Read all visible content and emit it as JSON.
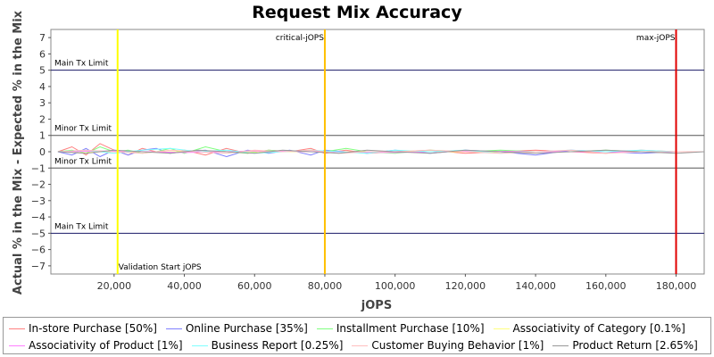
{
  "chart_data": {
    "type": "line",
    "title": "Request Mix Accuracy",
    "xlabel": "jOPS",
    "ylabel": "Actual % in the Mix - Expected % in the Mix",
    "xlim": [
      2000,
      188000
    ],
    "ylim": [
      -7.5,
      7.5
    ],
    "x_ticks": [
      20000,
      40000,
      60000,
      80000,
      100000,
      120000,
      140000,
      160000,
      180000
    ],
    "x_tick_labels": [
      "20,000",
      "40,000",
      "60,000",
      "80,000",
      "100,000",
      "120,000",
      "140,000",
      "160,000",
      "180,000"
    ],
    "y_ticks": [
      7,
      6,
      5,
      4,
      3,
      2,
      1,
      0,
      -1,
      -2,
      -3,
      -4,
      -5,
      -6,
      -7
    ],
    "y_tick_labels": [
      "7",
      "6",
      "5",
      "4",
      "3",
      "2",
      "1",
      "0",
      "−1",
      "−2",
      "−3",
      "−4",
      "−5",
      "−6",
      "−7"
    ],
    "grid": false,
    "legend_position": "bottom",
    "horizontal_lines": [
      {
        "y": 5,
        "label": "Main Tx Limit",
        "color": "#1a1a66"
      },
      {
        "y": 1,
        "label": "Minor Tx Limit",
        "color": "#555555"
      },
      {
        "y": -1,
        "label": "Minor Tx Limit",
        "color": "#555555"
      },
      {
        "y": -5,
        "label": "Main Tx Limit",
        "color": "#1a1a66"
      }
    ],
    "vertical_lines": [
      {
        "x": 21000,
        "label": "Validation Start jOPS",
        "color": "#ffff00"
      },
      {
        "x": 80000,
        "label": "critical-jOPS",
        "color": "#ffc000"
      },
      {
        "x": 180000,
        "label": "max-jOPS",
        "color": "#e00000"
      }
    ],
    "series": [
      {
        "name": "In-store Purchase [50%]",
        "color": "#ff7f7f",
        "x": [
          4000,
          8000,
          12000,
          16000,
          20000,
          24000,
          28000,
          32000,
          36000,
          40000,
          46000,
          52000,
          58000,
          64000,
          70000,
          76000,
          80000,
          86000,
          92000,
          100000,
          110000,
          120000,
          130000,
          140000,
          150000,
          160000,
          170000,
          180000,
          188000
        ],
        "y": [
          0.0,
          0.3,
          -0.2,
          0.5,
          0.1,
          -0.2,
          0.2,
          0.0,
          -0.1,
          0.1,
          -0.2,
          0.2,
          -0.1,
          0.1,
          0.0,
          0.2,
          -0.1,
          0.1,
          -0.1,
          0.0,
          0.1,
          -0.1,
          0.0,
          0.1,
          0.0,
          -0.1,
          0.1,
          0.0,
          0.0
        ]
      },
      {
        "name": "Online Purchase [35%]",
        "color": "#7f7fff",
        "x": [
          4000,
          8000,
          12000,
          16000,
          20000,
          24000,
          28000,
          32000,
          36000,
          40000,
          46000,
          52000,
          58000,
          64000,
          70000,
          76000,
          80000,
          86000,
          92000,
          100000,
          110000,
          120000,
          130000,
          140000,
          150000,
          160000,
          170000,
          180000,
          188000
        ],
        "y": [
          0.0,
          -0.2,
          0.2,
          -0.3,
          0.1,
          -0.2,
          0.1,
          0.2,
          -0.1,
          0.0,
          0.1,
          -0.3,
          0.1,
          -0.1,
          0.1,
          -0.2,
          0.1,
          0.0,
          -0.1,
          0.1,
          -0.1,
          0.1,
          0.0,
          -0.2,
          0.1,
          0.0,
          -0.1,
          0.0,
          0.0
        ]
      },
      {
        "name": "Installment Purchase [10%]",
        "color": "#7fff7f",
        "x": [
          4000,
          8000,
          12000,
          16000,
          20000,
          24000,
          28000,
          32000,
          36000,
          40000,
          46000,
          52000,
          58000,
          64000,
          70000,
          76000,
          80000,
          86000,
          92000,
          100000,
          110000,
          120000,
          130000,
          140000,
          150000,
          160000,
          170000,
          180000,
          188000
        ],
        "y": [
          0.0,
          0.1,
          -0.1,
          0.3,
          0.0,
          0.1,
          -0.1,
          0.0,
          0.2,
          -0.1,
          0.3,
          0.0,
          -0.1,
          0.1,
          0.0,
          0.1,
          0.0,
          0.2,
          0.0,
          -0.1,
          0.1,
          0.0,
          0.1,
          0.0,
          0.0,
          0.1,
          0.0,
          0.0,
          0.0
        ]
      },
      {
        "name": "Associativity of Category [0.1%]",
        "color": "#ffff7f",
        "x": [
          4000,
          40000,
          80000,
          120000,
          160000,
          188000
        ],
        "y": [
          0.0,
          0.0,
          0.0,
          0.0,
          0.0,
          0.0
        ]
      },
      {
        "name": "Associativity of Product [1%]",
        "color": "#ff7fff",
        "x": [
          4000,
          20000,
          40000,
          60000,
          80000,
          100000,
          120000,
          140000,
          160000,
          188000
        ],
        "y": [
          0.0,
          0.05,
          -0.05,
          0.05,
          0.0,
          -0.05,
          0.05,
          0.0,
          0.0,
          0.0
        ]
      },
      {
        "name": "Business Report [0.25%]",
        "color": "#7fffff",
        "x": [
          4000,
          12000,
          20000,
          28000,
          36000,
          44000,
          52000,
          60000,
          68000,
          76000,
          84000,
          92000,
          100000,
          110000,
          120000,
          130000,
          140000,
          150000,
          160000,
          170000,
          180000,
          188000
        ],
        "y": [
          0.0,
          0.1,
          -0.1,
          0.1,
          0.2,
          0.0,
          0.1,
          -0.1,
          0.0,
          0.1,
          0.0,
          -0.1,
          0.1,
          0.0,
          0.1,
          -0.1,
          0.0,
          0.1,
          0.0,
          0.1,
          0.0,
          0.0
        ]
      },
      {
        "name": "Customer Buying Behavior [1%]",
        "color": "#ffbfbf",
        "x": [
          4000,
          12000,
          20000,
          28000,
          36000,
          44000,
          52000,
          60000,
          68000,
          76000,
          84000,
          92000,
          100000,
          110000,
          120000,
          130000,
          140000,
          150000,
          160000,
          170000,
          180000,
          188000
        ],
        "y": [
          0.0,
          0.1,
          0.0,
          -0.1,
          0.1,
          0.0,
          -0.1,
          0.1,
          0.0,
          0.1,
          -0.1,
          0.0,
          0.0,
          0.1,
          0.0,
          -0.1,
          0.0,
          0.1,
          -0.1,
          0.0,
          0.0,
          0.0
        ]
      },
      {
        "name": "Product Return [2.65%]",
        "color": "#999999",
        "x": [
          4000,
          12000,
          20000,
          28000,
          36000,
          44000,
          52000,
          60000,
          68000,
          76000,
          84000,
          92000,
          100000,
          110000,
          120000,
          130000,
          140000,
          150000,
          160000,
          170000,
          180000,
          188000
        ],
        "y": [
          0.0,
          -0.1,
          0.1,
          0.0,
          -0.1,
          0.1,
          0.0,
          -0.1,
          0.1,
          0.0,
          -0.1,
          0.1,
          0.0,
          -0.1,
          0.1,
          0.0,
          -0.1,
          0.0,
          0.1,
          0.0,
          -0.1,
          0.0
        ]
      }
    ]
  }
}
